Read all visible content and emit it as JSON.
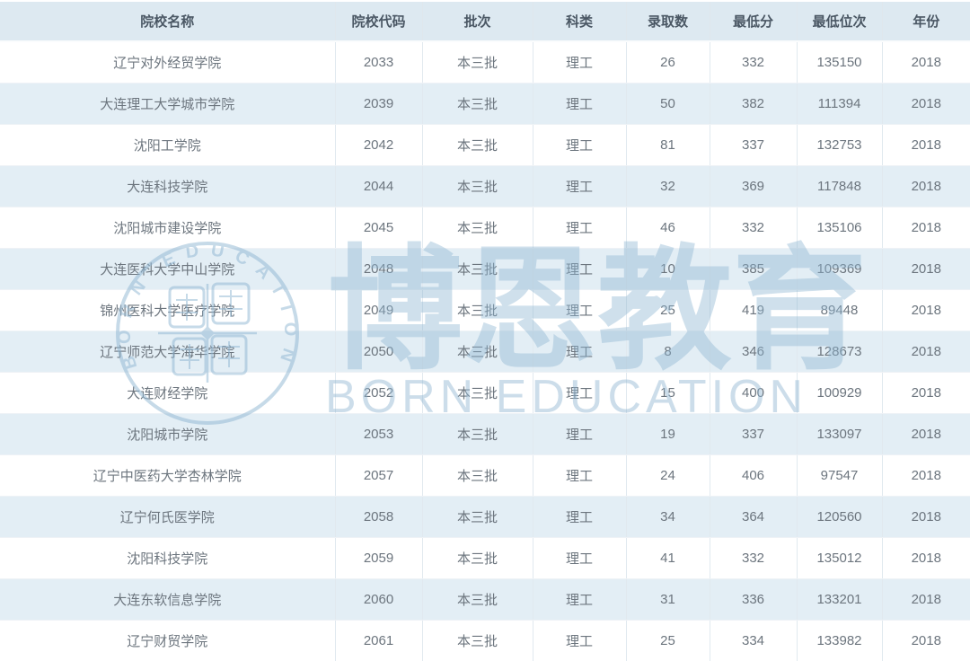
{
  "chart_data": {
    "type": "table",
    "columns": [
      "院校名称",
      "院校代码",
      "批次",
      "科类",
      "录取数",
      "最低分",
      "最低位次",
      "年份"
    ],
    "column_keys": [
      "name",
      "code",
      "batch",
      "category",
      "admit_count",
      "min_score",
      "min_rank",
      "year"
    ],
    "rows": [
      [
        "辽宁对外经贸学院",
        "2033",
        "本三批",
        "理工",
        "26",
        "332",
        "135150",
        "2018"
      ],
      [
        "大连理工大学城市学院",
        "2039",
        "本三批",
        "理工",
        "50",
        "382",
        "111394",
        "2018"
      ],
      [
        "沈阳工学院",
        "2042",
        "本三批",
        "理工",
        "81",
        "337",
        "132753",
        "2018"
      ],
      [
        "大连科技学院",
        "2044",
        "本三批",
        "理工",
        "32",
        "369",
        "117848",
        "2018"
      ],
      [
        "沈阳城市建设学院",
        "2045",
        "本三批",
        "理工",
        "46",
        "332",
        "135106",
        "2018"
      ],
      [
        "大连医科大学中山学院",
        "2048",
        "本三批",
        "理工",
        "10",
        "385",
        "109369",
        "2018"
      ],
      [
        "锦州医科大学医疗学院",
        "2049",
        "本三批",
        "理工",
        "25",
        "419",
        "89448",
        "2018"
      ],
      [
        "辽宁师范大学海华学院",
        "2050",
        "本三批",
        "理工",
        "8",
        "346",
        "128673",
        "2018"
      ],
      [
        "大连财经学院",
        "2052",
        "本三批",
        "理工",
        "15",
        "400",
        "100929",
        "2018"
      ],
      [
        "沈阳城市学院",
        "2053",
        "本三批",
        "理工",
        "19",
        "337",
        "133097",
        "2018"
      ],
      [
        "辽宁中医药大学杏林学院",
        "2057",
        "本三批",
        "理工",
        "24",
        "406",
        "97547",
        "2018"
      ],
      [
        "辽宁何氏医学院",
        "2058",
        "本三批",
        "理工",
        "34",
        "364",
        "120560",
        "2018"
      ],
      [
        "沈阳科技学院",
        "2059",
        "本三批",
        "理工",
        "41",
        "332",
        "135012",
        "2018"
      ],
      [
        "大连东软信息学院",
        "2060",
        "本三批",
        "理工",
        "31",
        "336",
        "133201",
        "2018"
      ],
      [
        "辽宁财贸学院",
        "2061",
        "本三批",
        "理工",
        "25",
        "334",
        "133982",
        "2018"
      ]
    ]
  },
  "watermark": {
    "brand_cn": "博恩教育",
    "brand_en": "BORN EDUCATION",
    "seal_ring_text": "BORN EDUCATION"
  },
  "colors": {
    "header_bg": "#dde9f1",
    "row_bg": "#ffffff",
    "row_alt_bg": "#e3eef5",
    "header_text": "#4a5764",
    "body_text": "#6c757e",
    "border_vertical": "#e1e9ef",
    "border_horizontal": "#eef2f6",
    "watermark": "#8fb6d2"
  }
}
